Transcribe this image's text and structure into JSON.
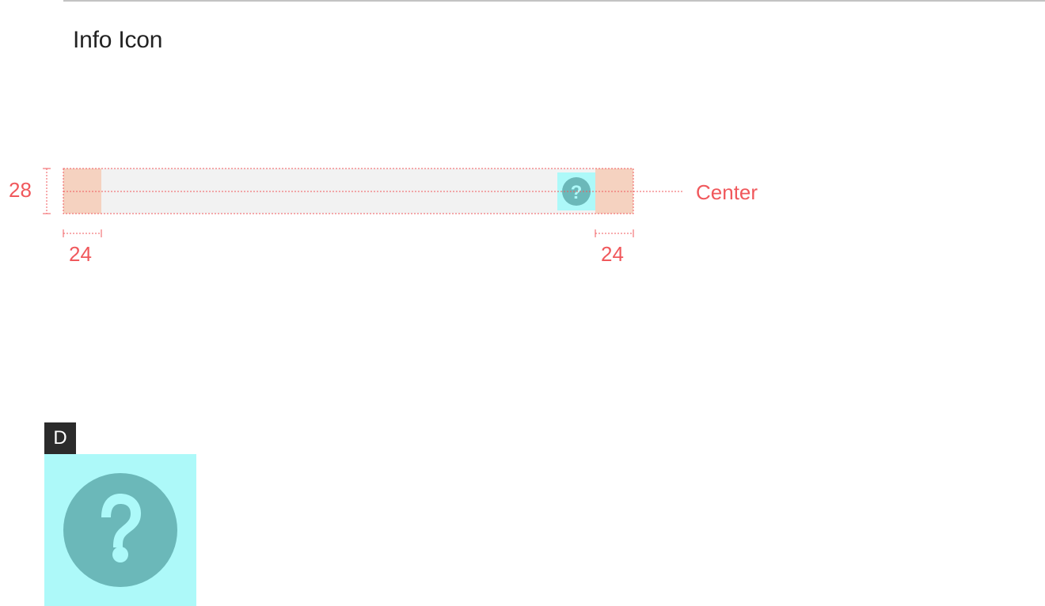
{
  "section": {
    "title": "Info Icon"
  },
  "spec": {
    "height_label": "28",
    "left_padding_label": "24",
    "right_padding_label": "24",
    "alignment_label": "Center",
    "icon": "question-circle-icon"
  },
  "example": {
    "badge": "D",
    "icon": "question-circle-icon"
  },
  "colors": {
    "annotation": "#f0585c",
    "padding_fill": "#f5d2c0",
    "bar_fill": "#f2f2f2",
    "icon_bg": "#adf9f9",
    "icon_fill": "#6bb8b9",
    "badge_bg": "#2b2b2b"
  }
}
